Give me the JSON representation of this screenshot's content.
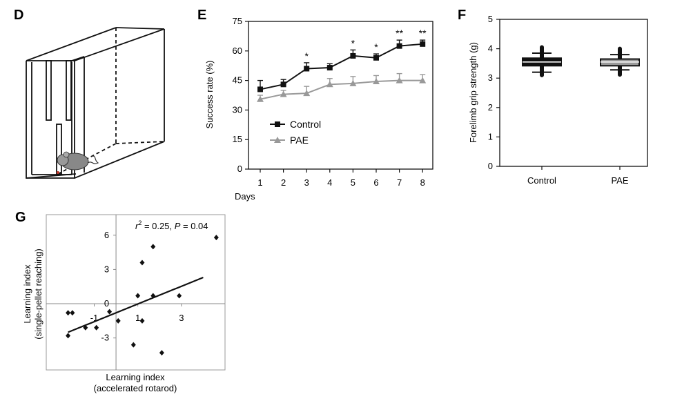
{
  "panels": {
    "D": "D",
    "E": "E",
    "F": "F",
    "G": "G"
  },
  "chart_data": [
    {
      "panel": "E",
      "type": "line",
      "xlabel": "Days",
      "ylabel": "Success rate (%)",
      "ylim": [
        0,
        75
      ],
      "yticks": [
        "0",
        "15",
        "30",
        "45",
        "60",
        "75"
      ],
      "x": [
        "1",
        "2",
        "3",
        "4",
        "5",
        "6",
        "7",
        "8"
      ],
      "series": [
        {
          "name": "Control",
          "color": "#111111",
          "marker": "square",
          "values": [
            40.5,
            43,
            51,
            51.5,
            57.5,
            56.5,
            62.5,
            63.5
          ],
          "errors": [
            4.5,
            2.5,
            3,
            2,
            3,
            2,
            3,
            2
          ]
        },
        {
          "name": "PAE",
          "color": "#999999",
          "marker": "triangle",
          "values": [
            35.5,
            38,
            38.5,
            43,
            43.5,
            44.5,
            45,
            45
          ],
          "errors": [
            2,
            2,
            3.5,
            3,
            3.5,
            3,
            3.5,
            3
          ]
        }
      ],
      "significance": [
        {
          "x": "3",
          "label": "*"
        },
        {
          "x": "5",
          "label": "*"
        },
        {
          "x": "6",
          "label": "*"
        },
        {
          "x": "7",
          "label": "**"
        },
        {
          "x": "8",
          "label": "**"
        }
      ],
      "legend_position": "middle-left",
      "grid": false
    },
    {
      "panel": "F",
      "type": "box",
      "ylabel": "Forelimb grip strength (g)",
      "ylim": [
        0,
        5
      ],
      "yticks": [
        "0",
        "1",
        "2",
        "3",
        "4",
        "5"
      ],
      "categories": [
        "Control",
        "PAE"
      ],
      "boxes": [
        {
          "name": "Control",
          "color": "#111111",
          "min": 3.1,
          "q1": 3.42,
          "median": 3.55,
          "q3": 3.68,
          "max": 4.05,
          "whisker_low": 3.2,
          "whisker_high": 3.85
        },
        {
          "name": "PAE",
          "color": "#999999",
          "min": 3.12,
          "q1": 3.42,
          "median": 3.55,
          "q3": 3.65,
          "max": 4.0,
          "whisker_low": 3.28,
          "whisker_high": 3.8
        }
      ],
      "grid": false
    },
    {
      "panel": "G",
      "type": "scatter",
      "xlabel": "Learning index (accelerated rotarod)",
      "xlabel_lines": [
        "Learning index",
        "(accelerated rotarod)"
      ],
      "ylabel": "Learning index (single-pellet reaching)",
      "ylabel_lines": [
        "Learning index",
        "(single-pellet reaching)"
      ],
      "annotation": "r² = 0.25, P = 0.04",
      "xlim": [
        -3.2,
        5.0
      ],
      "ylim": [
        -5.8,
        7.8
      ],
      "xticks": [
        {
          "v": -1,
          "label": "-1"
        },
        {
          "v": 1,
          "label": "1"
        },
        {
          "v": 3,
          "label": "3"
        }
      ],
      "yticks": [
        {
          "v": 6,
          "label": "6"
        },
        {
          "v": 3,
          "label": "3"
        },
        {
          "v": 0,
          "label": "0"
        },
        {
          "v": -3,
          "label": "-3"
        }
      ],
      "points": [
        [
          -2.2,
          -0.8
        ],
        [
          -2.0,
          -0.8
        ],
        [
          -2.2,
          -2.8
        ],
        [
          -1.4,
          -2.1
        ],
        [
          -0.9,
          -2.1
        ],
        [
          -0.3,
          -0.7
        ],
        [
          0.1,
          -1.5
        ],
        [
          0.8,
          -3.6
        ],
        [
          1.0,
          0.7
        ],
        [
          1.2,
          -1.5
        ],
        [
          1.2,
          3.6
        ],
        [
          1.7,
          5.0
        ],
        [
          1.7,
          0.7
        ],
        [
          2.1,
          -4.3
        ],
        [
          2.9,
          0.7
        ],
        [
          4.6,
          5.8
        ]
      ],
      "fit": {
        "x": [
          -2.2,
          4.0
        ],
        "y": [
          -2.5,
          2.3
        ]
      },
      "grid": false
    }
  ]
}
